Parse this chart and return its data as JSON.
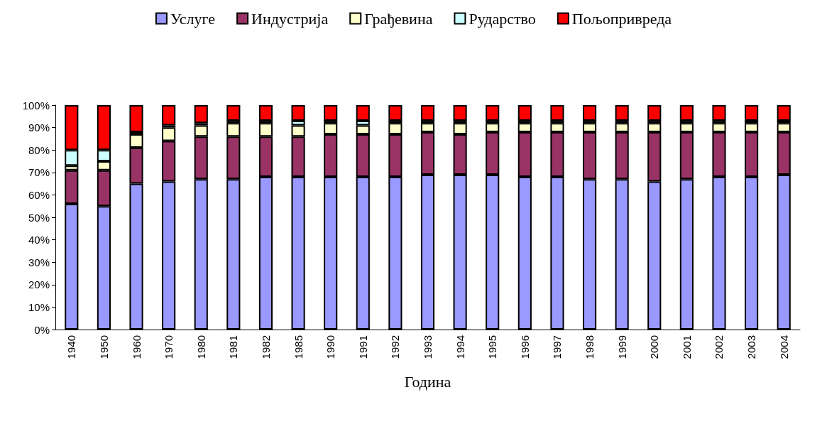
{
  "chart_data": {
    "type": "bar",
    "stacked": true,
    "xlabel": "Година",
    "categories": [
      "1940",
      "1950",
      "1960",
      "1970",
      "1980",
      "1981",
      "1982",
      "1985",
      "1990",
      "1991",
      "1992",
      "1993",
      "1994",
      "1995",
      "1996",
      "1997",
      "1998",
      "1999",
      "2000",
      "2001",
      "2002",
      "2003",
      "2004"
    ],
    "series": [
      {
        "name": "Услуге",
        "color": "#9999ff",
        "values": [
          56,
          55,
          65,
          66,
          67,
          67,
          68,
          68,
          68,
          68,
          68,
          69,
          69,
          69,
          68,
          68,
          67,
          67,
          66,
          67,
          68,
          68,
          69
        ]
      },
      {
        "name": "Индустрија",
        "color": "#993366",
        "values": [
          15,
          16,
          16,
          18,
          19,
          19,
          18,
          18,
          19,
          19,
          19,
          19,
          18,
          19,
          20,
          20,
          21,
          21,
          22,
          21,
          20,
          20,
          19
        ]
      },
      {
        "name": "Грађевина",
        "color": "#ffffcc",
        "values": [
          2,
          4,
          6,
          6,
          5,
          6,
          6,
          5,
          5,
          4,
          5,
          4,
          5,
          4,
          4,
          4,
          4,
          4,
          4,
          4,
          4,
          4,
          4
        ]
      },
      {
        "name": "Рударство",
        "color": "#ccffff",
        "values": [
          7,
          5,
          1,
          1,
          1,
          1,
          1,
          2,
          1,
          2,
          1,
          1,
          1,
          1,
          1,
          1,
          1,
          1,
          1,
          1,
          1,
          1,
          1
        ]
      },
      {
        "name": "Пољопривреда",
        "color": "#ff0000",
        "values": [
          20,
          20,
          12,
          9,
          8,
          7,
          7,
          7,
          7,
          7,
          7,
          7,
          7,
          7,
          7,
          7,
          7,
          7,
          7,
          7,
          7,
          7,
          7
        ]
      }
    ],
    "ylim": [
      0,
      100
    ],
    "yticks": [
      {
        "value": 0,
        "label": "0%"
      },
      {
        "value": 10,
        "label": "10%"
      },
      {
        "value": 20,
        "label": "20%"
      },
      {
        "value": 30,
        "label": "30%"
      },
      {
        "value": 40,
        "label": "40%"
      },
      {
        "value": 50,
        "label": "50%"
      },
      {
        "value": 60,
        "label": "60%"
      },
      {
        "value": 70,
        "label": "70%"
      },
      {
        "value": 80,
        "label": "80%"
      },
      {
        "value": 90,
        "label": "90%"
      },
      {
        "value": 100,
        "label": "100%"
      }
    ],
    "grid": false,
    "legend": "top"
  }
}
